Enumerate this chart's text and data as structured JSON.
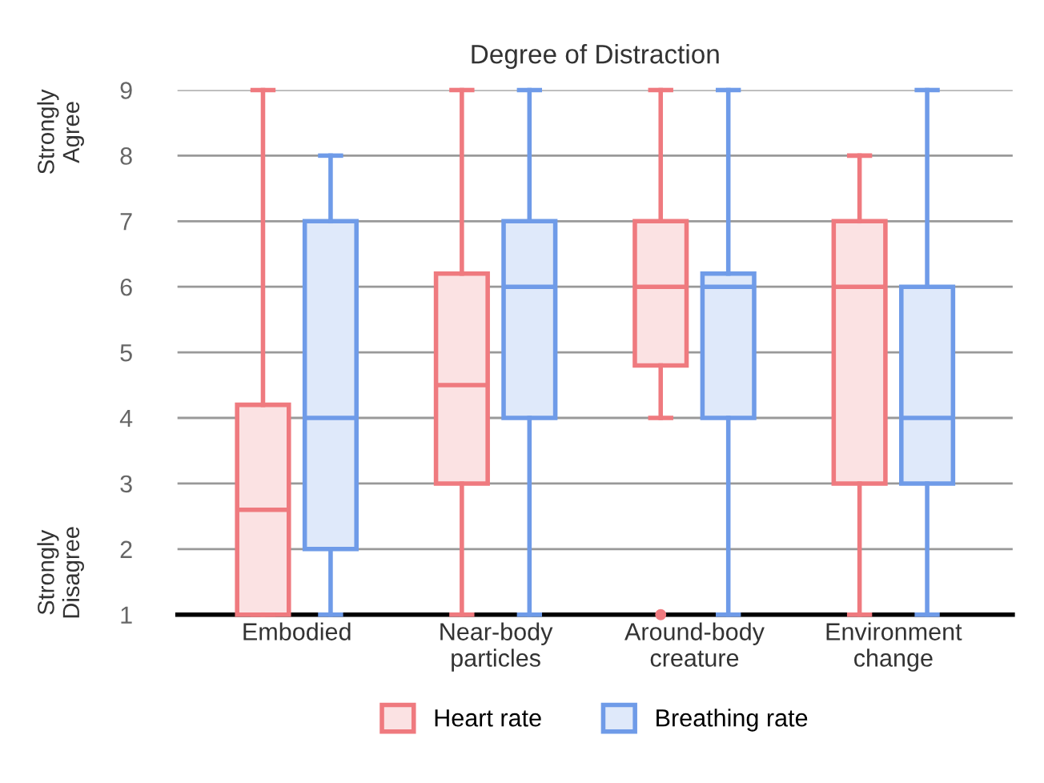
{
  "chart_data": {
    "type": "box",
    "title": "Degree of Distraction",
    "categories": [
      "Embodied",
      "Near-body\nparticles",
      "Around-body\ncreature",
      "Environment\nchange"
    ],
    "series": [
      {
        "name": "Heart rate",
        "color": "#ef7a7f",
        "boxes": [
          {
            "low": 1,
            "q1": 1,
            "median": 2.6,
            "q3": 4.2,
            "high": 9
          },
          {
            "low": 1,
            "q1": 3,
            "median": 4.5,
            "q3": 6.2,
            "high": 9
          },
          {
            "low": 4,
            "q1": 4.8,
            "median": 6,
            "q3": 7,
            "high": 9,
            "outliers": [
              1
            ]
          },
          {
            "low": 1,
            "q1": 3,
            "median": 6,
            "q3": 7,
            "high": 8
          }
        ]
      },
      {
        "name": "Breathing rate",
        "color": "#6f9be8",
        "boxes": [
          {
            "low": 1,
            "q1": 2,
            "median": 4,
            "q3": 7,
            "high": 8
          },
          {
            "low": 1,
            "q1": 4,
            "median": 6,
            "q3": 7,
            "high": 9
          },
          {
            "low": 1,
            "q1": 4,
            "median": 6,
            "q3": 6.2,
            "high": 9
          },
          {
            "low": 1,
            "q1": 3,
            "median": 4,
            "q3": 6,
            "high": 9
          }
        ]
      }
    ],
    "ylim": [
      1,
      9
    ],
    "yticks": [
      1,
      2,
      3,
      4,
      5,
      6,
      7,
      8,
      9
    ],
    "grid": "y",
    "legend": "bottom",
    "annotations": [
      "Strongly\nAgree",
      "Strongly\nDisagree"
    ]
  }
}
